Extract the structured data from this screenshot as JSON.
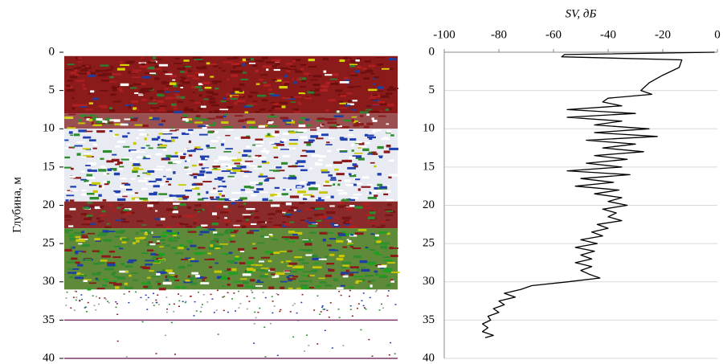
{
  "chart_data": [
    {
      "type": "echogram",
      "ylabel": "Глубина, м",
      "ylim": [
        0,
        40
      ],
      "yticks": [
        0,
        5,
        10,
        15,
        20,
        25,
        30,
        35,
        40
      ]
    },
    {
      "type": "line",
      "xlabel": "SV, дБ",
      "xlim": [
        -100,
        0
      ],
      "xticks": [
        -100,
        -80,
        -60,
        -40,
        -20,
        0
      ],
      "ylim": [
        0,
        40
      ],
      "yticks": [
        0,
        5,
        10,
        15,
        20,
        25,
        30,
        35,
        40
      ],
      "grid": true,
      "color": "#000000",
      "y": [
        0,
        0.3,
        0.6,
        1,
        2,
        3,
        4,
        5,
        5.5,
        6,
        6.5,
        7,
        7.5,
        8,
        8.5,
        9,
        9.5,
        10,
        10.5,
        11,
        11.5,
        12,
        12.5,
        13,
        13.5,
        14,
        14.5,
        15,
        15.5,
        16,
        16.5,
        17,
        17.5,
        18,
        18.5,
        19,
        19.5,
        20,
        20.5,
        21,
        21.5,
        22,
        22.5,
        23,
        23.5,
        24,
        24.5,
        25,
        25.5,
        26,
        26.5,
        27,
        27.5,
        28,
        28.5,
        29,
        29.5,
        30,
        30.5,
        31,
        31.5,
        32,
        32.5,
        33,
        33.5,
        34,
        34.5,
        35,
        35.5,
        36,
        36.5,
        37,
        37.3
      ],
      "values": [
        -1,
        -56,
        -57,
        -13,
        -14,
        -20,
        -25,
        -28,
        -24,
        -40,
        -42,
        -35,
        -55,
        -30,
        -55,
        -35,
        -45,
        -25,
        -45,
        -22,
        -48,
        -30,
        -42,
        -27,
        -45,
        -33,
        -48,
        -35,
        -55,
        -32,
        -50,
        -38,
        -52,
        -36,
        -45,
        -35,
        -40,
        -33,
        -42,
        -37,
        -40,
        -35,
        -44,
        -40,
        -46,
        -42,
        -50,
        -44,
        -52,
        -45,
        -50,
        -46,
        -52,
        -46,
        -50,
        -47,
        -43,
        -55,
        -68,
        -72,
        -78,
        -74,
        -80,
        -78,
        -82,
        -80,
        -84,
        -83,
        -86,
        -84,
        -86,
        -82,
        -85
      ]
    }
  ]
}
